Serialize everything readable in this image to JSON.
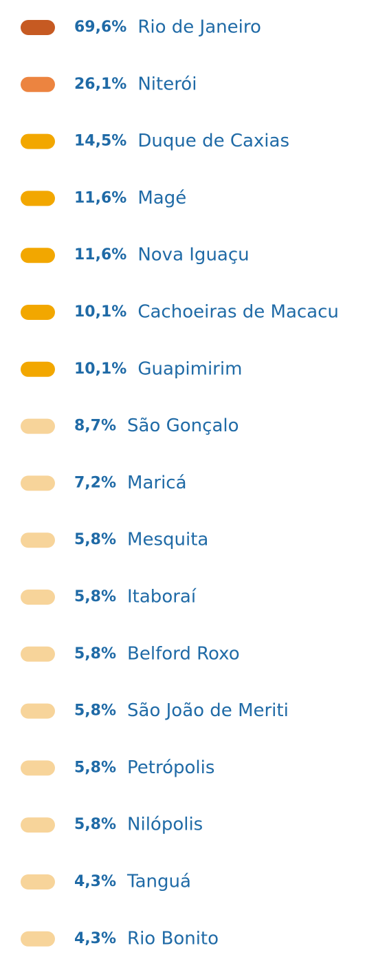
{
  "chart_data": {
    "type": "legend-list",
    "categories": [
      "Rio de Janeiro",
      "Niterói",
      "Duque de Caxias",
      "Magé",
      "Nova Iguaçu",
      "Cachoeiras de Macacu",
      "Guapimirim",
      "São Gonçalo",
      "Maricá",
      "Mesquita",
      "Itaboraí",
      "Belford Roxo",
      "São João de Meriti",
      "Petrópolis",
      "Nilópolis",
      "Tanguá",
      "Rio Bonito"
    ],
    "values": [
      69.6,
      26.1,
      14.5,
      11.6,
      11.6,
      10.1,
      10.1,
      8.7,
      7.2,
      5.8,
      5.8,
      5.8,
      5.8,
      5.8,
      5.8,
      4.3,
      4.3
    ],
    "value_labels": [
      "69,6%",
      "26,1%",
      "14,5%",
      "11,6%",
      "11,6%",
      "10,1%",
      "10,1%",
      "8,7%",
      "7,2%",
      "5,8%",
      "5,8%",
      "5,8%",
      "5,8%",
      "5,8%",
      "5,8%",
      "4,3%",
      "4,3%"
    ],
    "colors": [
      "#c65a22",
      "#ec8440",
      "#f2a700",
      "#f2a700",
      "#f2a700",
      "#f2a700",
      "#f2a700",
      "#f7d49a",
      "#f7d49a",
      "#f7d49a",
      "#f7d49a",
      "#f7d49a",
      "#f7d49a",
      "#f7d49a",
      "#f7d49a",
      "#f7d49a",
      "#f7d49a"
    ]
  }
}
